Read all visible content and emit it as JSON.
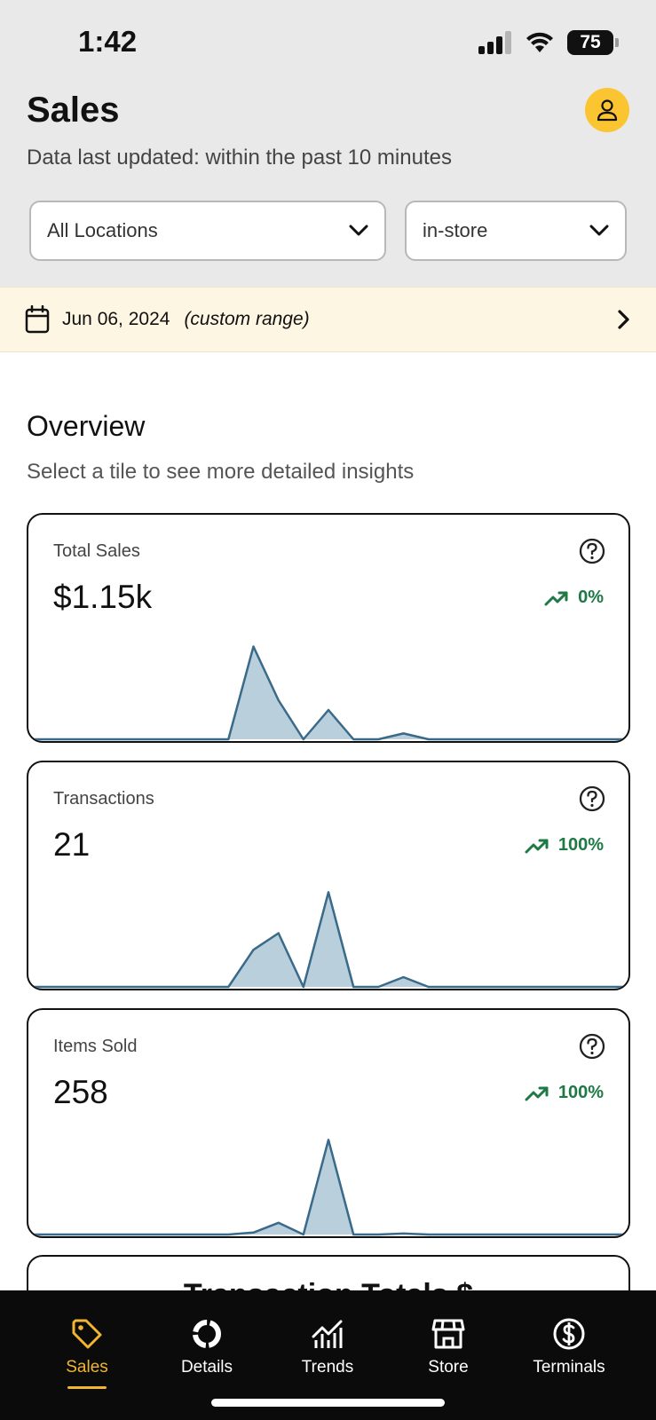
{
  "status": {
    "time": "1:42",
    "battery": "75"
  },
  "header": {
    "title": "Sales",
    "subtitle": "Data last updated: within the past 10 minutes",
    "location_select": "All Locations",
    "channel_select": "in-store"
  },
  "date_bar": {
    "date": "Jun 06, 2024",
    "range_note": "(custom range)"
  },
  "overview": {
    "title": "Overview",
    "subtitle": "Select a tile to see more detailed insights"
  },
  "tiles": [
    {
      "label": "Total Sales",
      "value": "$1.15k",
      "change": "0%",
      "sparkline": [
        0,
        0,
        0,
        0,
        0,
        0,
        0,
        0,
        0,
        0.95,
        0.4,
        0,
        0.3,
        0,
        0,
        0.06,
        0,
        0,
        0,
        0,
        0,
        0,
        0,
        0,
        0
      ]
    },
    {
      "label": "Transactions",
      "value": "21",
      "change": "100%",
      "sparkline": [
        0,
        0,
        0,
        0,
        0,
        0,
        0,
        0,
        0,
        0.38,
        0.55,
        0,
        0.97,
        0,
        0,
        0.1,
        0,
        0,
        0,
        0,
        0,
        0,
        0,
        0,
        0
      ]
    },
    {
      "label": "Items Sold",
      "value": "258",
      "change": "100%",
      "sparkline": [
        0,
        0,
        0,
        0,
        0,
        0,
        0,
        0,
        0,
        0.02,
        0.12,
        0,
        0.97,
        0,
        0,
        0.01,
        0,
        0,
        0,
        0,
        0,
        0,
        0,
        0,
        0
      ]
    }
  ],
  "partial_tile": {
    "title": "Transaction Totals $"
  },
  "colors": {
    "accent": "#f2b530",
    "avatar_bg": "#fbc531",
    "trend_up": "#1e7a45",
    "spark_fill": "#b9cfdc",
    "spark_line": "#3a6a8a"
  },
  "tabbar": {
    "items": [
      {
        "label": "Sales",
        "icon": "tag-icon"
      },
      {
        "label": "Details",
        "icon": "donut-chart-icon"
      },
      {
        "label": "Trends",
        "icon": "trend-chart-icon"
      },
      {
        "label": "Store",
        "icon": "storefront-icon"
      },
      {
        "label": "Terminals",
        "icon": "dollar-circle-icon"
      }
    ]
  }
}
